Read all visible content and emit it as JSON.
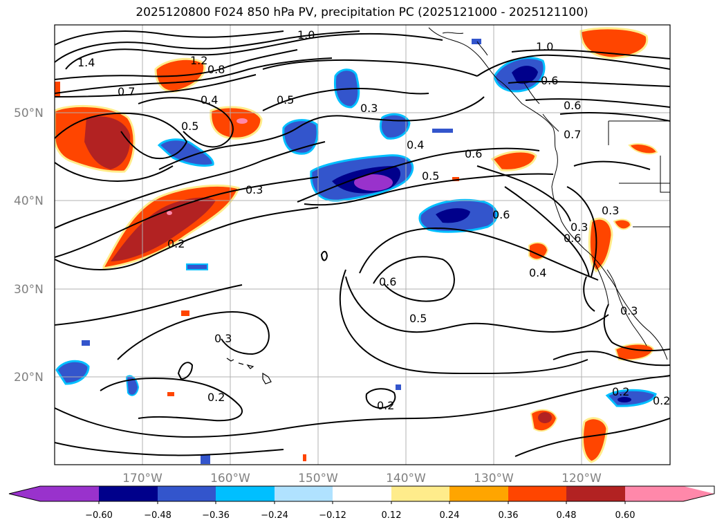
{
  "title": "2025120800 F024 850 hPa PV, precipitation PC (2025121000 - 2025121100)",
  "map": {
    "lat_labels": [
      "50°N",
      "40°N",
      "30°N",
      "20°N"
    ],
    "lon_labels": [
      "170°W",
      "160°W",
      "150°W",
      "140°W",
      "130°W",
      "120°W"
    ],
    "contour_labels": [
      "1.4",
      "1.2",
      "1.0",
      "0.8",
      "0.7",
      "0.4",
      "0.5",
      "0.5",
      "0.3",
      "1.0",
      "0.6",
      "0.6",
      "0.7",
      "0.4",
      "0.6",
      "0.5",
      "0.3",
      "0.2",
      "0.6",
      "0.3",
      "0.6",
      "0.3",
      "0.4",
      "0.6",
      "0.5",
      "0.3",
      "0.2",
      "0.2",
      "0.3",
      "0.2",
      "0.2"
    ]
  },
  "colorbar": {
    "tick_labels": [
      "−0.60",
      "−0.48",
      "−0.36",
      "−0.24",
      "−0.12",
      "0.12",
      "0.24",
      "0.36",
      "0.48",
      "0.60"
    ],
    "colors": [
      "#9932cc",
      "#00008b",
      "#3355cc",
      "#00bfff",
      "#b0e2ff",
      "#ffffff",
      "#ffec8b",
      "#ffa500",
      "#ff4500",
      "#b22222",
      "#ff88aa"
    ]
  }
}
